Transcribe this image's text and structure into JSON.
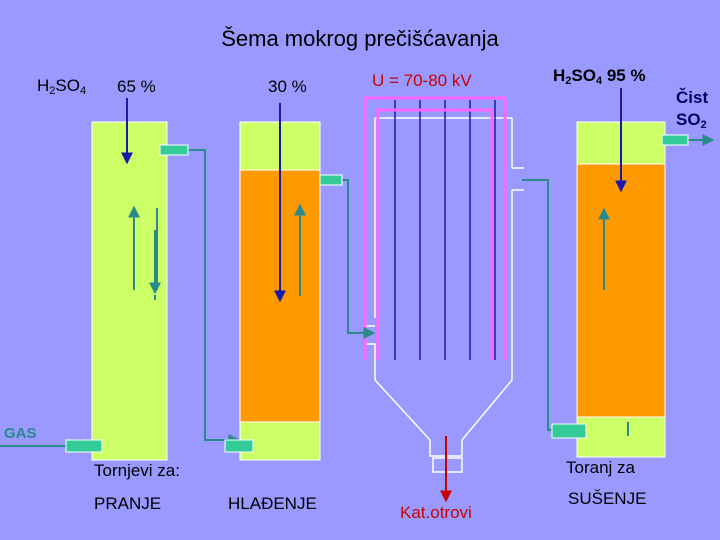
{
  "title": "Šema mokrog prečišćavanja",
  "h2so4_left": {
    "main": "H",
    "sub1": "2",
    "mid": "SO",
    "sub2": "4"
  },
  "conc_65": "65 %",
  "conc_30": "30 %",
  "voltage": "U = 70-80 kV",
  "h2so4_right": {
    "main": "H",
    "sub1": "2",
    "mid": "SO",
    "sub2": "4",
    "tail": " 95 %"
  },
  "cist": "Čist",
  "so2": {
    "main": "SO",
    "sub": "2"
  },
  "gas": "GAS",
  "tornjevi": "Tornjevi za:",
  "pranje": "PRANJE",
  "hladjenje": "HLAĐENJE",
  "kat_otrovi": "Kat.otrovi",
  "toranj_za": "Toranj za",
  "susenje": "SUŠENJE",
  "colors": {
    "background": "#9999ff",
    "tower_light": "#ccff66",
    "tower_orange": "#ff9900",
    "pipe": "#2a8a8a",
    "acid_arrow": "#1a1aaa",
    "electrode": "#ff66ff",
    "waste_arrow": "#cc0000",
    "nozzle": "#33cc99"
  }
}
